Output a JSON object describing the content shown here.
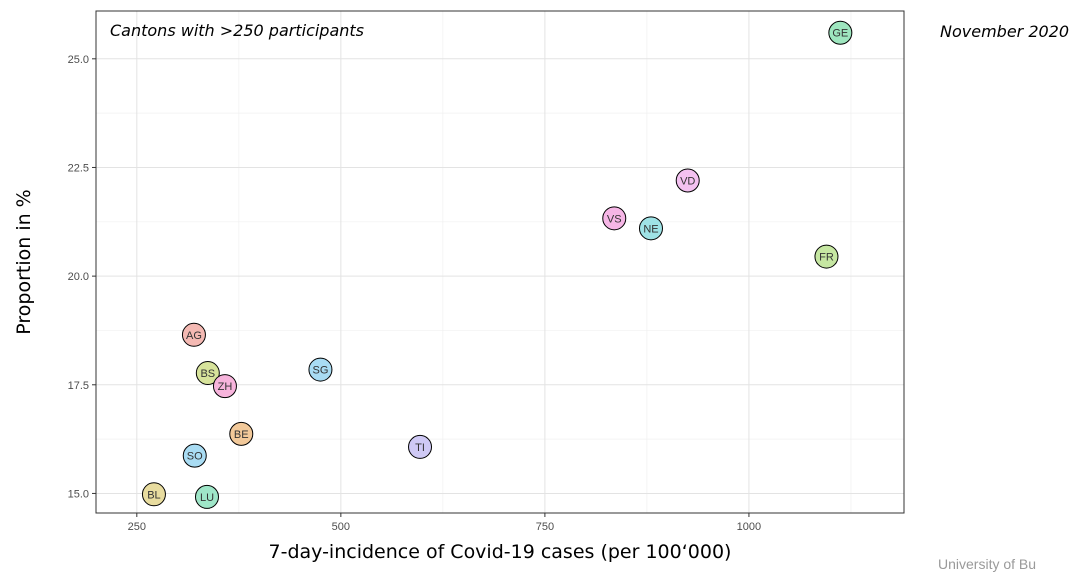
{
  "side_note": "November 2020",
  "footer_note": "University of Bu",
  "chart_data": {
    "type": "scatter",
    "annotation": "Cantons with >250 participants",
    "xlabel": "7-day-incidence of Covid-19 cases (per 100‘000)",
    "ylabel": "Proportion in %",
    "xlim": [
      200,
      1190
    ],
    "ylim": [
      14.55,
      26.1
    ],
    "x_ticks": [
      250,
      500,
      750,
      1000
    ],
    "y_ticks": [
      15.0,
      17.5,
      20.0,
      22.5,
      25.0
    ],
    "x_minor_ticks": [
      375,
      625,
      875,
      1125
    ],
    "y_minor_ticks": [
      16.25,
      18.75,
      21.25,
      23.75
    ],
    "grid": true,
    "legend": "none",
    "points": [
      {
        "label": "GE",
        "x": 1112,
        "y": 25.6,
        "color": "#9ee6bf"
      },
      {
        "label": "VD",
        "x": 925,
        "y": 22.2,
        "color": "#f3c1f0"
      },
      {
        "label": "VS",
        "x": 835,
        "y": 21.33,
        "color": "#f6b6e6"
      },
      {
        "label": "NE",
        "x": 880,
        "y": 21.1,
        "color": "#9fe3e6"
      },
      {
        "label": "FR",
        "x": 1095,
        "y": 20.45,
        "color": "#c6e7a2"
      },
      {
        "label": "AG",
        "x": 320,
        "y": 18.65,
        "color": "#f4b9b3"
      },
      {
        "label": "SG",
        "x": 475,
        "y": 17.85,
        "color": "#a9dcf3"
      },
      {
        "label": "BS",
        "x": 337,
        "y": 17.77,
        "color": "#d7e39b"
      },
      {
        "label": "ZH",
        "x": 358,
        "y": 17.47,
        "color": "#f7b4dc"
      },
      {
        "label": "BE",
        "x": 378,
        "y": 16.37,
        "color": "#f2c99a"
      },
      {
        "label": "TI",
        "x": 597,
        "y": 16.07,
        "color": "#cfc9f5"
      },
      {
        "label": "SO",
        "x": 321,
        "y": 15.87,
        "color": "#a9dcf3"
      },
      {
        "label": "BL",
        "x": 271,
        "y": 14.98,
        "color": "#e8dc9f"
      },
      {
        "label": "LU",
        "x": 336,
        "y": 14.92,
        "color": "#9fe6c8"
      }
    ]
  }
}
